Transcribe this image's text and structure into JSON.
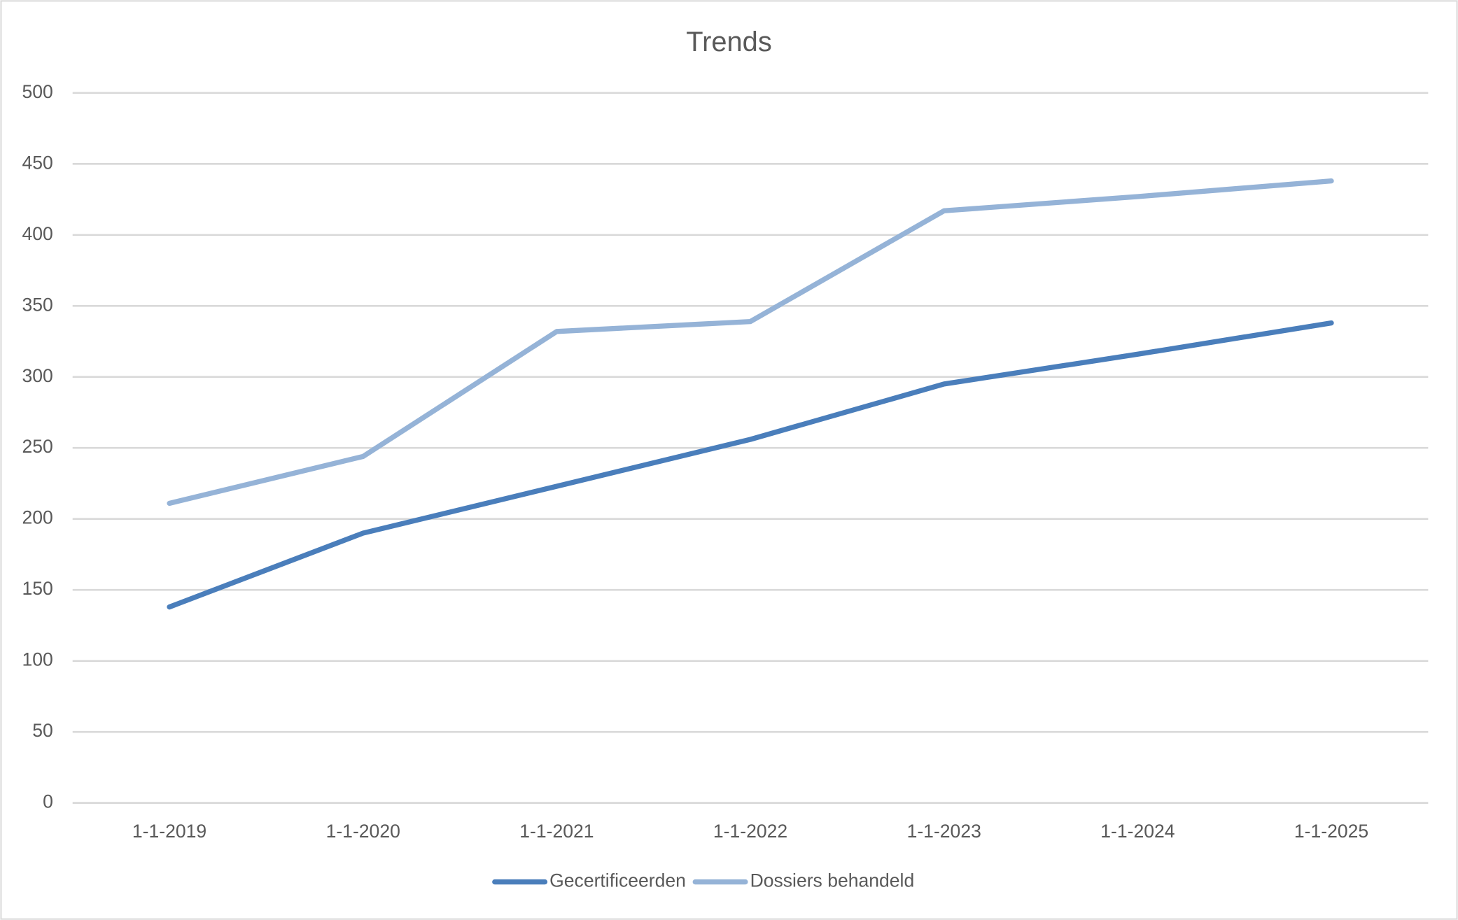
{
  "chart_data": {
    "type": "line",
    "title": "Trends",
    "categories": [
      "1-1-2019",
      "1-1-2020",
      "1-1-2021",
      "1-1-2022",
      "1-1-2023",
      "1-1-2024",
      "1-1-2025"
    ],
    "series": [
      {
        "name": "Gecertificeerden",
        "color": "#4a7ebb",
        "values": [
          138,
          190,
          223,
          256,
          295,
          316,
          338
        ]
      },
      {
        "name": "Dossiers behandeld",
        "color": "#95b3d7",
        "values": [
          211,
          244,
          332,
          339,
          417,
          427,
          438
        ]
      }
    ],
    "ylim": [
      0,
      500
    ],
    "yticks": [
      0,
      50,
      100,
      150,
      200,
      250,
      300,
      350,
      400,
      450,
      500
    ],
    "grid": true,
    "legend": "bottom"
  }
}
